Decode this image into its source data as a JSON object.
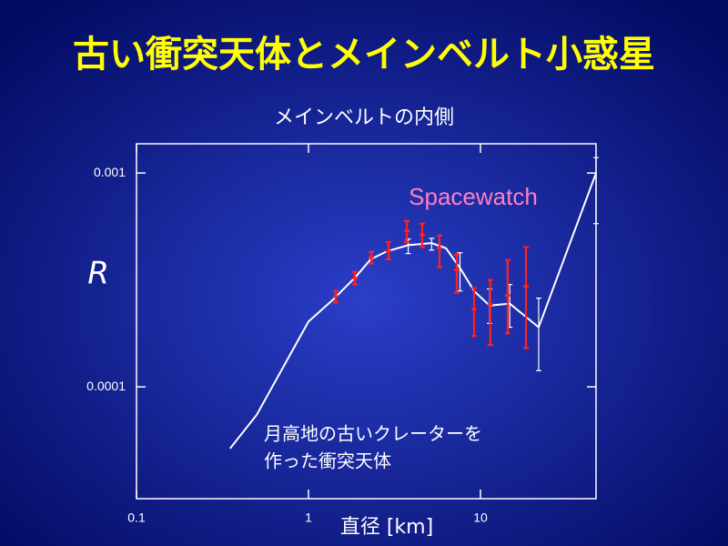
{
  "chart_data": {
    "type": "line",
    "title": "古い衝突天体とメインベルト小惑星",
    "subtitle": "メインベルトの内側",
    "y_label": "R",
    "x_label": "直径 [km]",
    "annotation": [
      "月高地の古いクレーターを",
      "作った衝突天体"
    ],
    "log_x": true,
    "log_y": true,
    "xlim": [
      0.1,
      47
    ],
    "ylim": [
      3e-05,
      0.00137
    ],
    "xticks": [
      0.1,
      1,
      10
    ],
    "yticks": [
      0.0001,
      0.001
    ],
    "series": [
      {
        "color": "#ffffff",
        "style": "line",
        "x": [
          0.35,
          0.5,
          1.0,
          1.42,
          1.9,
          2.3,
          2.85,
          3.8,
          5.2,
          6.3,
          7.6,
          9.2,
          11.3,
          14.8,
          21.8,
          47
        ],
        "values": [
          5.15e-05,
          7.4e-05,
          0.000202,
          0.00026,
          0.00033,
          0.000395,
          0.00043,
          0.00046,
          0.00047,
          0.000445,
          0.00036,
          0.00028,
          0.00024,
          0.000245,
          0.00019,
          0.001
        ],
        "lower": [
          null,
          null,
          null,
          null,
          null,
          null,
          null,
          0.00042,
          0.000436,
          null,
          0.000281,
          null,
          0.000198,
          0.00019,
          0.000119,
          0.00058
        ],
        "upper": [
          null,
          null,
          null,
          null,
          null,
          null,
          null,
          0.000491,
          0.000495,
          null,
          0.000424,
          null,
          0.000287,
          0.000301,
          0.00026,
          0.00118
        ]
      },
      {
        "name": "Spacewatch",
        "color": "#ff2020",
        "label_color": "#ff80c0",
        "style": "errorbar",
        "x": [
          1.44,
          1.86,
          2.32,
          2.92,
          3.73,
          4.58,
          5.78,
          7.28,
          9.18,
          11.4,
          14.4,
          18.4
        ],
        "values": [
          0.000265,
          0.000322,
          0.000404,
          0.000431,
          0.000536,
          0.000515,
          0.000445,
          0.000352,
          0.000231,
          0.000243,
          0.000268,
          0.000295
        ],
        "lower": [
          0.000248,
          0.000301,
          0.000377,
          0.000395,
          0.000476,
          0.00045,
          0.000362,
          0.000276,
          0.000173,
          0.000157,
          0.000178,
          0.000152
        ],
        "upper": [
          0.000281,
          0.000345,
          0.000428,
          0.000476,
          0.000596,
          0.00058,
          0.00051,
          0.000416,
          0.00029,
          0.000316,
          0.000392,
          0.00045
        ]
      }
    ]
  }
}
